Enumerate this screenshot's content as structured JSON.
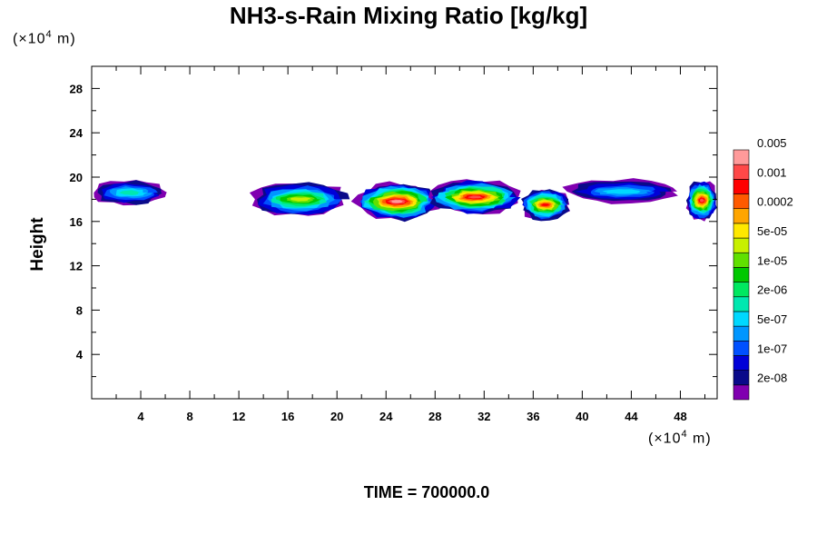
{
  "chart_data": {
    "type": "heatmap",
    "title": "NH3-s-Rain Mixing Ratio [kg/kg]",
    "ylabel": "Height",
    "x_unit": "(×10⁴ m)",
    "y_unit": "(×10⁴ m)",
    "footer": "TIME = 700000.0",
    "xlim": [
      0,
      51
    ],
    "ylim": [
      0,
      30
    ],
    "x_ticks": [
      4,
      8,
      12,
      16,
      20,
      24,
      28,
      32,
      36,
      40,
      44,
      48
    ],
    "y_ticks": [
      4,
      8,
      12,
      16,
      20,
      24,
      28
    ],
    "colorbar": {
      "colors": [
        "#8000b0",
        "#0a0a8a",
        "#0000d8",
        "#0050ff",
        "#0096ff",
        "#00d8ff",
        "#00e8b0",
        "#00e860",
        "#00c800",
        "#60e000",
        "#c8f000",
        "#ffe800",
        "#ffa500",
        "#ff5a00",
        "#ff0000",
        "#ff4848",
        "#ff9a9a"
      ],
      "labels": [
        "2e-08",
        "1e-07",
        "5e-07",
        "2e-06",
        "1e-05",
        "5e-05",
        "0.0002",
        "0.001",
        "0.005"
      ]
    },
    "cloud_blobs": [
      {
        "x0": 0,
        "x1": 6.2,
        "y0": 17.4,
        "y1": 19.8,
        "peak_level": 6
      },
      {
        "x0": 13,
        "x1": 21,
        "y0": 16.4,
        "y1": 19.6,
        "peak_level": 10
      },
      {
        "x0": 21.5,
        "x1": 28.3,
        "y0": 16.0,
        "y1": 19.6,
        "peak_level": 16
      },
      {
        "x0": 27.5,
        "x1": 35,
        "y0": 16.6,
        "y1": 19.8,
        "peak_level": 15
      },
      {
        "x0": 35,
        "x1": 39,
        "y0": 16.0,
        "y1": 19.0,
        "peak_level": 14
      },
      {
        "x0": 38.5,
        "x1": 48,
        "y0": 17.6,
        "y1": 19.8,
        "peak_level": 5
      },
      {
        "x0": 48.5,
        "x1": 51,
        "y0": 16.0,
        "y1": 19.8,
        "peak_level": 15
      }
    ]
  }
}
